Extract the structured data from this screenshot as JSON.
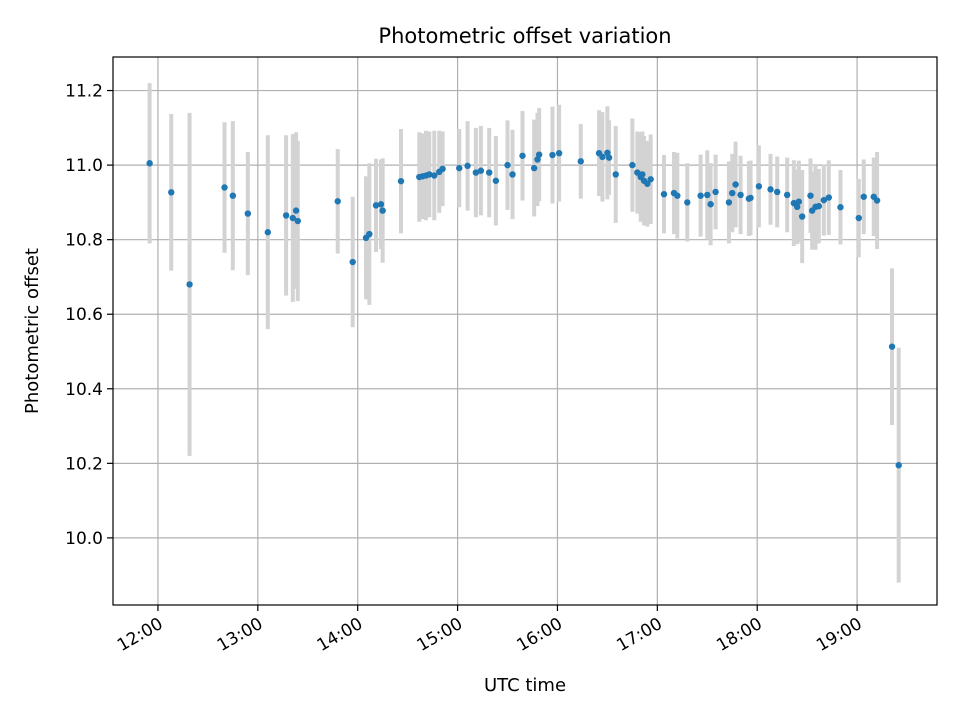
{
  "chart_data": {
    "type": "scatter",
    "title": "Photometric offset variation",
    "xlabel": "UTC time",
    "ylabel": "Photometric offset",
    "xlim": [
      "11:33",
      "19:48"
    ],
    "ylim": [
      9.82,
      11.29
    ],
    "x_ticks": [
      "12:00",
      "13:00",
      "14:00",
      "15:00",
      "16:00",
      "17:00",
      "18:00",
      "19:00"
    ],
    "y_ticks": [
      "10.0",
      "10.2",
      "10.4",
      "10.6",
      "10.8",
      "11.0",
      "11.2"
    ],
    "grid": true,
    "colors": {
      "point": "#1f77b4",
      "errorbar": "#d3d3d3",
      "grid": "#b0b0b0"
    },
    "series": [
      {
        "x": [
          "11:55",
          "12:08",
          "12:19",
          "12:40",
          "12:45",
          "12:54",
          "13:06",
          "13:17",
          "13:21",
          "13:23",
          "13:24",
          "13:48",
          "13:57",
          "14:05",
          "14:07",
          "14:11",
          "14:14",
          "14:15",
          "14:26",
          "14:37",
          "14:39",
          "14:41",
          "14:43",
          "14:46",
          "14:49",
          "14:51",
          "15:01",
          "15:06",
          "15:11",
          "15:14",
          "15:19",
          "15:23",
          "15:30",
          "15:33",
          "15:39",
          "15:46",
          "15:48",
          "15:49",
          "15:57",
          "16:01",
          "16:14",
          "16:25",
          "16:27",
          "16:30",
          "16:31",
          "16:35",
          "16:45",
          "16:48",
          "16:50",
          "16:51",
          "16:52",
          "16:54",
          "16:56",
          "17:04",
          "17:10",
          "17:12",
          "17:18",
          "17:26",
          "17:30",
          "17:32",
          "17:35",
          "17:43",
          "17:45",
          "17:47",
          "17:50",
          "17:55",
          "17:56",
          "18:01",
          "18:08",
          "18:12",
          "18:18",
          "18:22",
          "18:24",
          "18:25",
          "18:27",
          "18:32",
          "18:33",
          "18:35",
          "18:37",
          "18:40",
          "18:43",
          "18:50",
          "19:01",
          "19:04",
          "19:10",
          "19:12",
          "19:21",
          "19:25"
        ],
        "y": [
          11.005,
          10.927,
          10.68,
          10.94,
          10.918,
          10.87,
          10.82,
          10.865,
          10.858,
          10.878,
          10.85,
          10.903,
          10.74,
          10.805,
          10.815,
          10.892,
          10.895,
          10.878,
          10.957,
          10.968,
          10.97,
          10.972,
          10.975,
          10.972,
          10.982,
          10.99,
          10.992,
          10.998,
          10.98,
          10.985,
          10.98,
          10.958,
          11.0,
          10.975,
          11.025,
          10.992,
          11.015,
          11.028,
          11.027,
          11.032,
          11.01,
          11.032,
          11.022,
          11.033,
          11.02,
          10.975,
          11.0,
          10.98,
          10.968,
          10.975,
          10.958,
          10.95,
          10.962,
          10.922,
          10.925,
          10.918,
          10.9,
          10.918,
          10.92,
          10.895,
          10.928,
          10.9,
          10.925,
          10.948,
          10.92,
          10.91,
          10.912,
          10.943,
          10.935,
          10.928,
          10.92,
          10.898,
          10.888,
          10.902,
          10.862,
          10.918,
          10.878,
          10.888,
          10.89,
          10.906,
          10.913,
          10.887,
          10.858,
          10.915,
          10.915,
          10.905,
          10.513,
          10.195
        ],
        "yerr": [
          0.215,
          0.21,
          0.46,
          0.175,
          0.2,
          0.165,
          0.26,
          0.215,
          0.225,
          0.21,
          0.215,
          0.14,
          0.175,
          0.165,
          0.19,
          0.125,
          0.12,
          0.14,
          0.14,
          0.12,
          0.115,
          0.12,
          0.115,
          0.12,
          0.11,
          0.1,
          0.105,
          0.12,
          0.12,
          0.12,
          0.12,
          0.12,
          0.12,
          0.12,
          0.12,
          0.13,
          0.125,
          0.125,
          0.13,
          0.13,
          0.1,
          0.115,
          0.12,
          0.125,
          0.1,
          0.13,
          0.125,
          0.11,
          0.12,
          0.115,
          0.12,
          0.115,
          0.12,
          0.105,
          0.11,
          0.115,
          0.105,
          0.11,
          0.12,
          0.11,
          0.1,
          0.11,
          0.105,
          0.115,
          0.105,
          0.1,
          0.1,
          0.11,
          0.095,
          0.095,
          0.1,
          0.115,
          0.1,
          0.11,
          0.125,
          0.1,
          0.105,
          0.115,
          0.1,
          0.095,
          0.1,
          0.1,
          0.105,
          0.1,
          0.105,
          0.13,
          0.21,
          0.315
        ]
      }
    ]
  }
}
